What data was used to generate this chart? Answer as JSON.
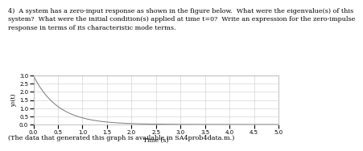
{
  "title_text": "4)  A system has a zero-input response as shown in the figure below.  What were the eigenvalue(s) of this\nsystem?  What were the initial condition(s) applied at time t=0?  Write an expression for the zero-impulse\nresponse in terms of its characteristic mode terms.",
  "ylabel": "y₀(t)",
  "xlabel": "Time (s)",
  "caption": "(The data that generated this graph is available in SA4prob4data.m.)",
  "xlim": [
    0,
    5
  ],
  "ylim": [
    0,
    3
  ],
  "yticks": [
    0,
    0.5,
    1,
    1.5,
    2,
    2.5,
    3
  ],
  "xticks": [
    0,
    0.5,
    1,
    1.5,
    2,
    2.5,
    3,
    3.5,
    4,
    4.5,
    5
  ],
  "line_color": "#777777",
  "background_color": "#ffffff",
  "grid_color": "#cccccc",
  "eigenvalue": -2.0,
  "amplitude": 3.0,
  "t_start": 0,
  "t_end": 5,
  "num_points": 1000,
  "title_fontsize": 5.8,
  "axis_label_fontsize": 5.5,
  "tick_fontsize": 5.0,
  "caption_fontsize": 5.8
}
